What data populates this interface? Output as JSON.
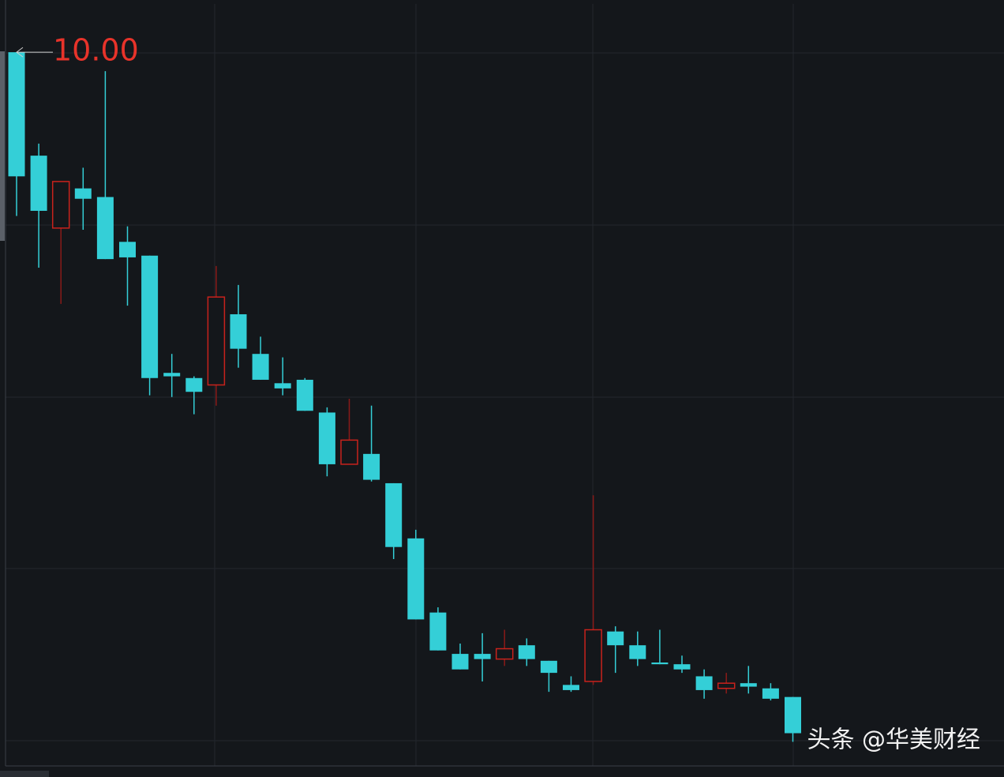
{
  "chart_data": {
    "type": "candlestick",
    "open": [
      10.0,
      9.4,
      8.98,
      9.21,
      9.16,
      8.9,
      8.82,
      8.14,
      8.11,
      8.07,
      8.48,
      8.25,
      8.08,
      8.1,
      7.91,
      7.61,
      7.67,
      7.5,
      7.18,
      6.75,
      6.51,
      6.51,
      6.48,
      6.56,
      6.47,
      6.33,
      6.35,
      6.64,
      6.56,
      6.46,
      6.45,
      6.38,
      6.31,
      6.34,
      6.31,
      6.26
    ],
    "high": [
      10.0,
      9.47,
      9.25,
      9.33,
      9.89,
      8.99,
      8.82,
      8.25,
      8.12,
      8.76,
      8.65,
      8.35,
      8.23,
      8.11,
      7.94,
      7.99,
      7.95,
      7.5,
      7.23,
      6.78,
      6.57,
      6.63,
      6.65,
      6.6,
      6.47,
      6.38,
      7.43,
      6.67,
      6.64,
      6.65,
      6.5,
      6.42,
      6.4,
      6.44,
      6.34,
      6.26
    ],
    "low": [
      9.05,
      8.75,
      8.54,
      8.97,
      8.8,
      8.53,
      8.01,
      8.0,
      7.9,
      7.95,
      8.17,
      8.1,
      8.01,
      7.92,
      7.54,
      7.61,
      7.51,
      7.06,
      6.71,
      6.53,
      6.42,
      6.35,
      6.44,
      6.44,
      6.29,
      6.29,
      6.33,
      6.4,
      6.44,
      6.45,
      6.4,
      6.25,
      6.28,
      6.28,
      6.24,
      6.0
    ],
    "close": [
      9.28,
      9.08,
      9.25,
      9.15,
      8.8,
      8.81,
      8.11,
      8.12,
      8.03,
      8.58,
      8.28,
      8.1,
      8.05,
      7.92,
      7.61,
      7.75,
      7.52,
      7.13,
      6.71,
      6.53,
      6.42,
      6.48,
      6.54,
      6.48,
      6.4,
      6.3,
      6.65,
      6.56,
      6.48,
      6.45,
      6.42,
      6.3,
      6.34,
      6.32,
      6.25,
      6.05
    ],
    "ylim": [
      5.86,
      10.28
    ],
    "up_color": "#c8221c",
    "down_color": "#34cfd7",
    "annotations": [
      {
        "text": "10.00",
        "color": "#e8332a"
      }
    ],
    "watermark": "头条 @华美财经"
  }
}
